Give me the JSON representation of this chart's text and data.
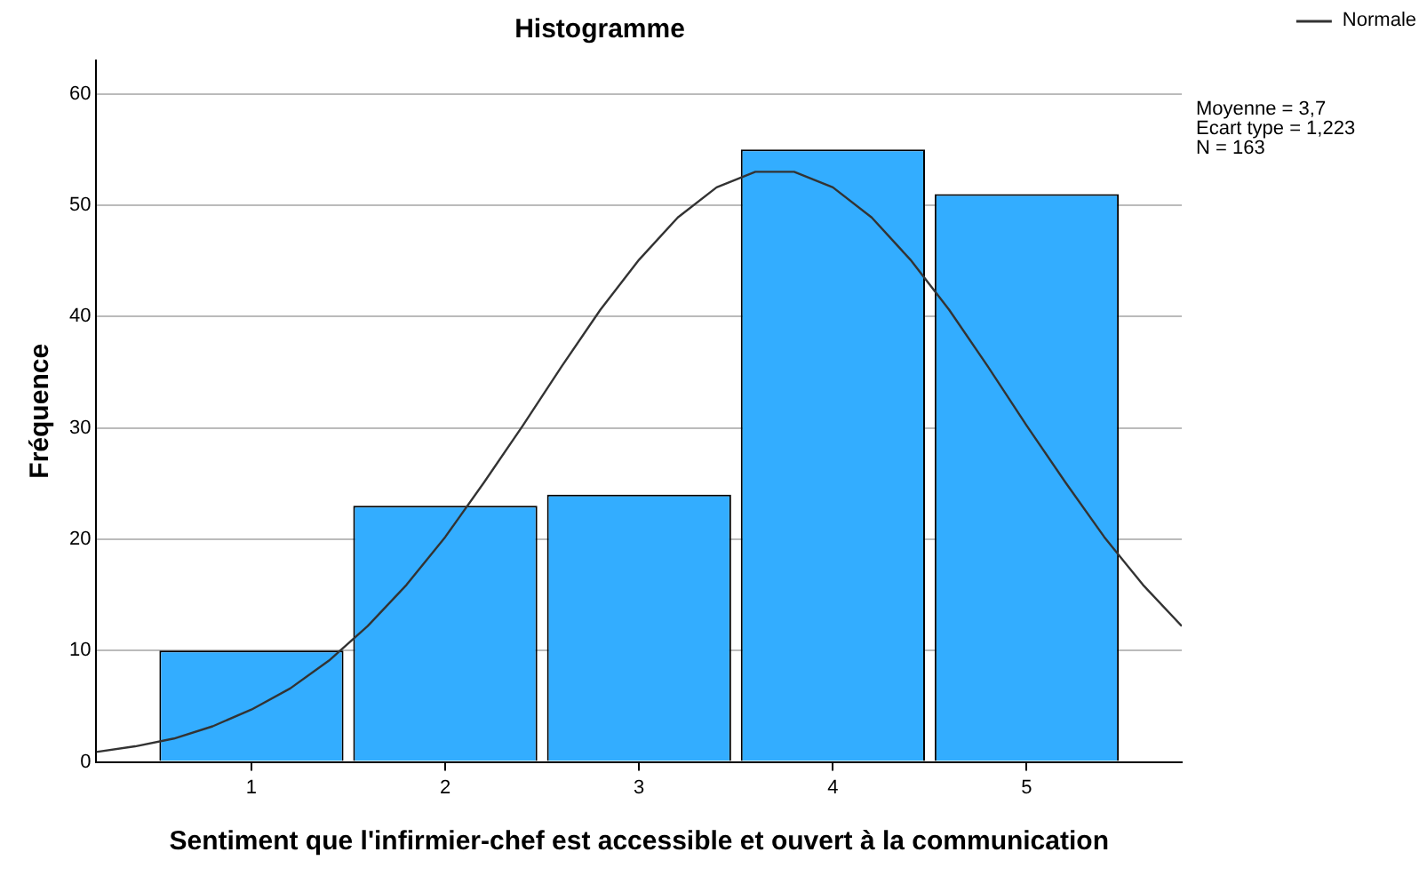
{
  "chart_data": {
    "type": "histogram",
    "title": "Histogramme",
    "xlabel": "Sentiment que l'infirmier-chef est accessible et ouvert à la communication",
    "ylabel": "Fréquence",
    "bins": [
      0.5,
      1.5,
      2.5,
      3.5,
      4.5,
      5.5
    ],
    "values": [
      10,
      23,
      24,
      55,
      51
    ],
    "color": "#33adff",
    "series": [
      {
        "type": "line",
        "name": "Normale",
        "color": "#333333",
        "x": [
          0.2,
          0.4,
          0.6,
          0.8,
          1.0,
          1.2,
          1.4,
          1.6,
          1.8,
          2.0,
          2.2,
          2.4,
          2.6,
          2.8,
          3.0,
          3.2,
          3.4,
          3.6,
          3.8,
          4.0,
          4.2,
          4.4,
          4.6,
          4.8,
          5.0,
          5.2,
          5.4,
          5.6,
          5.8
        ],
        "values": [
          0.9,
          1.4,
          2.1,
          3.2,
          4.7,
          6.6,
          9.1,
          12.2,
          15.9,
          20.2,
          25.1,
          30.2,
          35.5,
          40.6,
          45.1,
          48.9,
          51.6,
          53,
          53,
          51.6,
          48.9,
          45.1,
          40.6,
          35.5,
          30.2,
          25.1,
          20.2,
          15.9,
          12.2
        ]
      }
    ],
    "xlim": [
      0.2,
      5.8
    ],
    "xticks": [
      1,
      2,
      3,
      4,
      5
    ],
    "ylim": [
      0,
      63
    ],
    "yticks": [
      0,
      10,
      20,
      30,
      40,
      50,
      60
    ],
    "grid": "y",
    "legend": "top right",
    "marker": "none",
    "annotations": [
      "Moyenne = 3,7",
      "Ecart type = 1,223",
      "N = 163"
    ]
  }
}
